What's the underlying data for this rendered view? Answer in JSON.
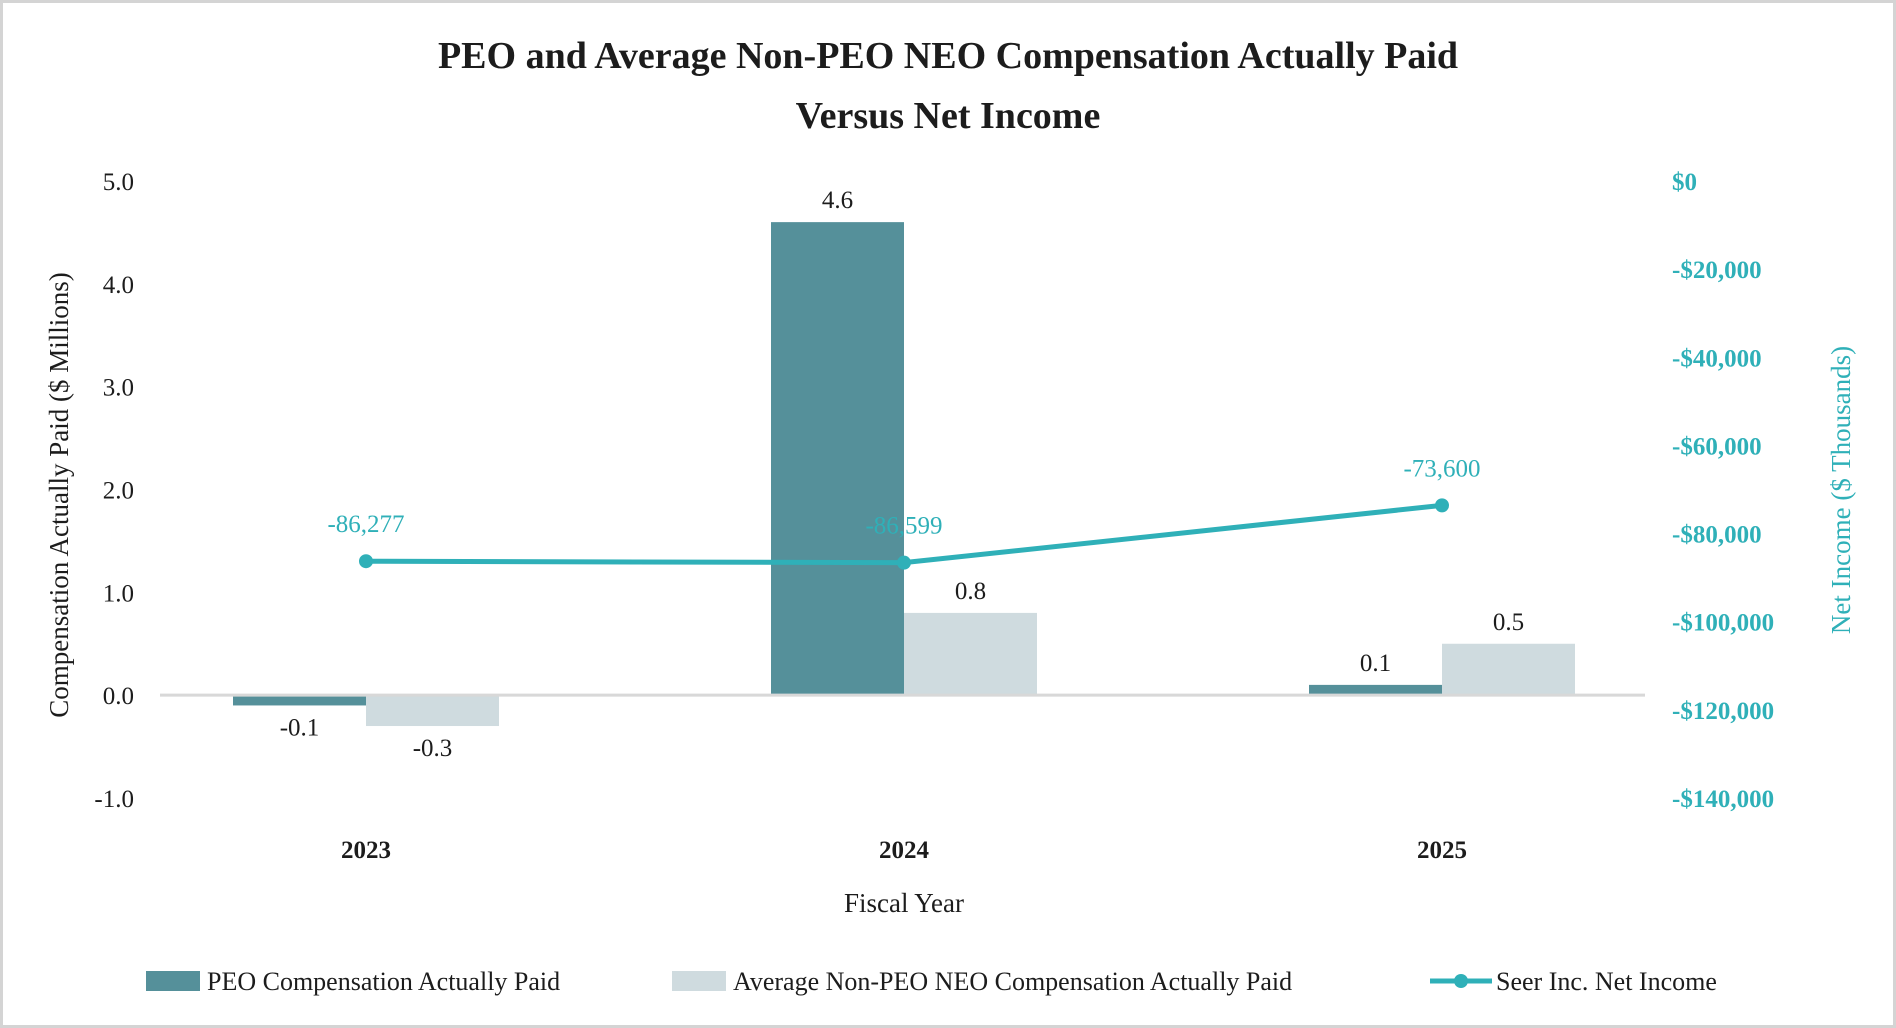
{
  "chart_data": {
    "type": "bar",
    "title_lines": [
      "PEO and Average Non-PEO NEO Compensation Actually Paid",
      "Versus Net Income"
    ],
    "xlabel": "Fiscal Year",
    "ylabel": "Compensation Actually Paid ($ Millions)",
    "ylabel_right": "Net Income ($ Thousands)",
    "categories": [
      "2023",
      "2024",
      "2025"
    ],
    "ylim": [
      -1.0,
      5.0
    ],
    "yticks": [
      "5.0",
      "4.0",
      "3.0",
      "2.0",
      "1.0",
      "0.0",
      "-1.0"
    ],
    "ylim_right": [
      -140000,
      0
    ],
    "yticks_right": [
      "$0",
      "-$20,000",
      "-$40,000",
      "-$60,000",
      "-$80,000",
      "-$100,000",
      "-$120,000",
      "-$140,000"
    ],
    "grid": false,
    "legend_position": "bottom",
    "series": [
      {
        "name": "PEO Compensation Actually Paid",
        "kind": "bar",
        "axis": "left",
        "color": "#55909a",
        "values": [
          -0.1,
          4.6,
          0.1
        ],
        "labels": [
          "-0.1",
          "4.6",
          "0.1"
        ]
      },
      {
        "name": "Average Non-PEO NEO Compensation Actually Paid",
        "kind": "bar",
        "axis": "left",
        "color": "#cfdbdf",
        "values": [
          -0.3,
          0.8,
          0.5
        ],
        "labels": [
          "-0.3",
          "0.8",
          "0.5"
        ]
      },
      {
        "name": "Seer Inc. Net Income",
        "kind": "line",
        "axis": "right",
        "color": "#2fb0b8",
        "values": [
          -86277,
          -86599,
          -73600
        ],
        "labels": [
          "-86,277",
          "-86,599",
          "-73,600"
        ]
      }
    ]
  }
}
